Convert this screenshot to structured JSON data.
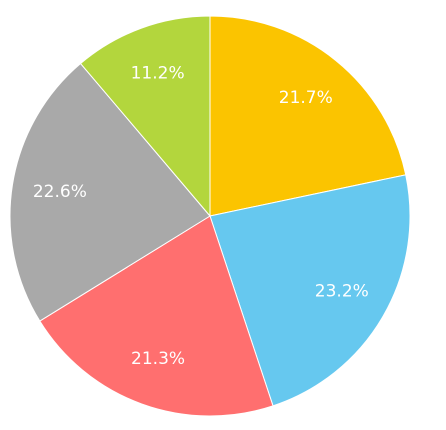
{
  "chart_data": {
    "type": "pie",
    "values": [
      21.7,
      23.2,
      21.3,
      22.6,
      11.2
    ],
    "value_labels": [
      "21.7%",
      "23.2%",
      "21.3%",
      "22.6%",
      "11.2%"
    ],
    "colors": [
      "#fbc400",
      "#66c8ef",
      "#ff6f6f",
      "#a9a9a9",
      "#b3d63d"
    ]
  }
}
